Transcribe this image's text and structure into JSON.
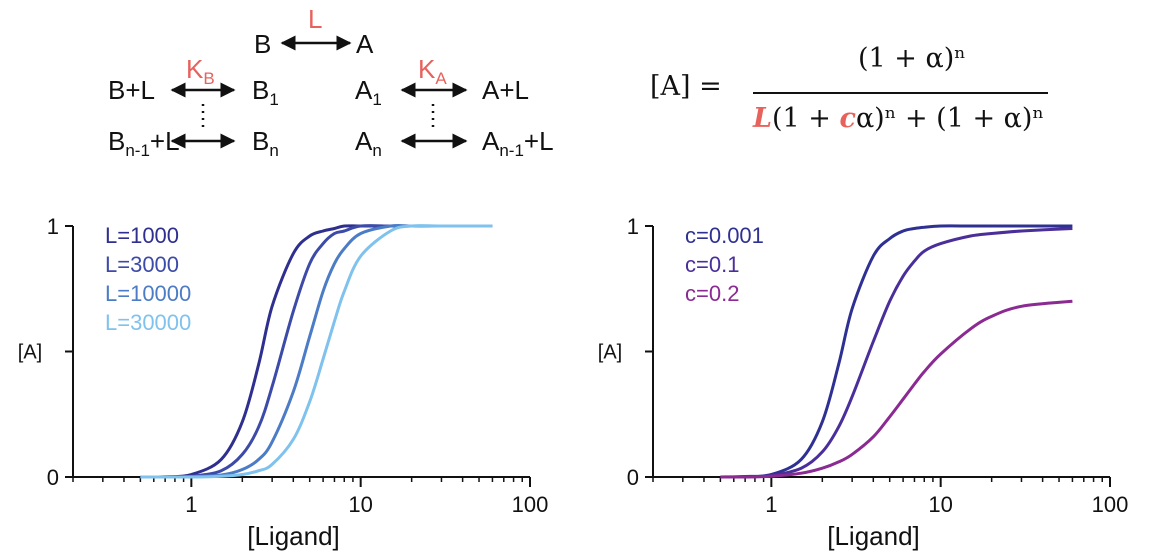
{
  "scheme": {
    "top_left": "B",
    "top_arrow_label": "L",
    "top_right": "A",
    "kb_label": "K",
    "kb_sub": "B",
    "ka_label": "K",
    "ka_sub": "A",
    "bl_row1_left": "B+L",
    "b1": "B",
    "b1_sub": "1",
    "a1": "A",
    "a1_sub": "1",
    "al_row1_right": "A+L",
    "bn1_left": "B",
    "bn1_sub": "n-1",
    "bn1_suffix": "+L",
    "bn": "B",
    "bn_sub": "n",
    "an": "A",
    "an_sub": "n",
    "an1_right": "A",
    "an1_sub": "n-1",
    "an1_suffix": "+L",
    "colors": {
      "label": "#e8625c",
      "text": "#111111"
    }
  },
  "equation": {
    "lhs": "[A] =",
    "numerator": "(1 + α)ⁿ",
    "den_L": "L",
    "den_part1": "(1 + ",
    "den_c": "c",
    "den_part2": "α)ⁿ + (1 + α)ⁿ"
  },
  "chart_data": [
    {
      "type": "line",
      "xlabel": "[Ligand]",
      "ylabel": "[A]",
      "x_scale": "log",
      "xlim": [
        0.2,
        100
      ],
      "ylim": [
        0,
        1
      ],
      "x_ticks": [
        1,
        10,
        100
      ],
      "x_tick_labels": [
        "1",
        "10",
        "100"
      ],
      "y_ticks": [
        0,
        1
      ],
      "y_tick_labels": [
        "0",
        "1"
      ],
      "legend_position": "top-left",
      "x": [
        0.5,
        0.7,
        1,
        1.5,
        2,
        2.5,
        3,
        4,
        5,
        6,
        7,
        8,
        10,
        15,
        20,
        30,
        60
      ],
      "series": [
        {
          "name": "L=1000",
          "color": "#2e2f8e",
          "values": [
            0.0,
            0.001,
            0.01,
            0.07,
            0.22,
            0.45,
            0.68,
            0.89,
            0.96,
            0.98,
            0.99,
            1.0,
            1.0,
            1.0,
            1.0,
            1.0,
            1.0
          ]
        },
        {
          "name": "L=3000",
          "color": "#3c4aa8",
          "values": [
            0.0,
            0.0,
            0.003,
            0.025,
            0.09,
            0.2,
            0.36,
            0.66,
            0.85,
            0.93,
            0.97,
            0.98,
            1.0,
            1.0,
            1.0,
            1.0,
            1.0
          ]
        },
        {
          "name": "L=10000",
          "color": "#4b7cc5",
          "values": [
            0.0,
            0.0,
            0.001,
            0.008,
            0.03,
            0.07,
            0.14,
            0.34,
            0.56,
            0.74,
            0.85,
            0.91,
            0.97,
            1.0,
            1.0,
            1.0,
            1.0
          ]
        },
        {
          "name": "L=30000",
          "color": "#7fc2ee",
          "values": [
            0.0,
            0.0,
            0.0,
            0.003,
            0.01,
            0.025,
            0.05,
            0.15,
            0.3,
            0.47,
            0.62,
            0.74,
            0.88,
            0.98,
            1.0,
            1.0,
            1.0
          ]
        }
      ]
    },
    {
      "type": "line",
      "xlabel": "[Ligand]",
      "ylabel": "[A]",
      "x_scale": "log",
      "xlim": [
        0.2,
        100
      ],
      "ylim": [
        0,
        1
      ],
      "x_ticks": [
        1,
        10,
        100
      ],
      "x_tick_labels": [
        "1",
        "10",
        "100"
      ],
      "y_ticks": [
        0,
        1
      ],
      "y_tick_labels": [
        "0",
        "1"
      ],
      "legend_position": "top-left",
      "x": [
        0.5,
        0.7,
        1,
        1.5,
        2,
        2.5,
        3,
        4,
        5,
        6,
        7,
        8,
        10,
        15,
        20,
        30,
        60
      ],
      "series": [
        {
          "name": "c=0.001",
          "color": "#2e3192",
          "values": [
            0.0,
            0.002,
            0.01,
            0.07,
            0.22,
            0.45,
            0.67,
            0.88,
            0.95,
            0.98,
            0.99,
            0.995,
            1.0,
            1.0,
            1.0,
            1.0,
            1.0
          ]
        },
        {
          "name": "c=0.1",
          "color": "#4a2e9a",
          "values": [
            0.0,
            0.001,
            0.006,
            0.035,
            0.1,
            0.2,
            0.32,
            0.54,
            0.7,
            0.8,
            0.86,
            0.9,
            0.93,
            0.96,
            0.97,
            0.98,
            0.99
          ]
        },
        {
          "name": "c=0.2",
          "color": "#8a2a92",
          "values": [
            0.0,
            0.0,
            0.003,
            0.015,
            0.035,
            0.06,
            0.09,
            0.16,
            0.24,
            0.31,
            0.37,
            0.42,
            0.49,
            0.59,
            0.64,
            0.68,
            0.7
          ]
        }
      ]
    }
  ]
}
